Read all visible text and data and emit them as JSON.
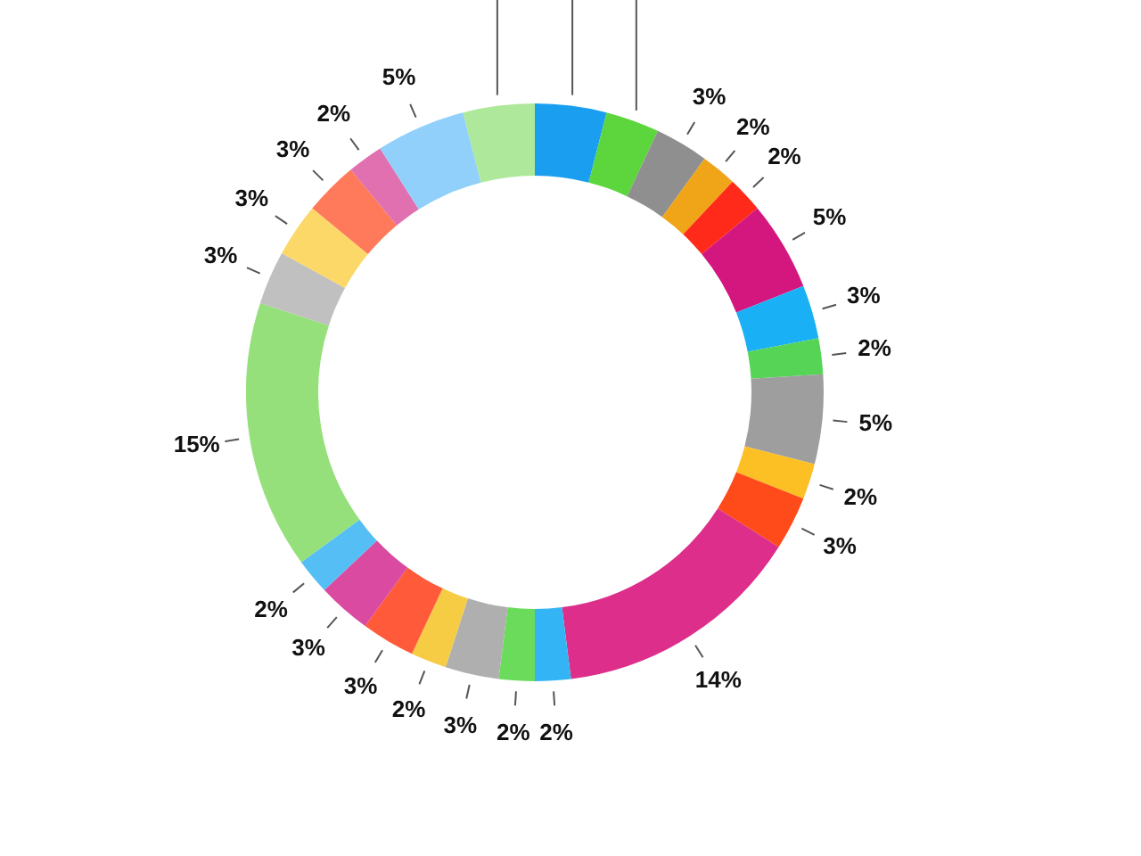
{
  "chart_data": {
    "type": "donut",
    "categories": [
      null,
      null,
      null,
      null,
      null,
      null,
      null,
      null,
      null,
      null,
      null,
      null,
      null,
      null,
      null,
      null,
      null,
      null,
      null,
      null,
      null,
      null,
      null,
      null,
      null,
      null
    ],
    "values": [
      4,
      3,
      3,
      2,
      2,
      5,
      3,
      2,
      5,
      2,
      3,
      14,
      2,
      2,
      3,
      2,
      3,
      3,
      2,
      15,
      3,
      3,
      3,
      2,
      5,
      4
    ],
    "value_labels": [
      null,
      null,
      "3%",
      "2%",
      "2%",
      "5%",
      "3%",
      "2%",
      "5%",
      "2%",
      "3%",
      "14%",
      "2%",
      "2%",
      "3%",
      "2%",
      "3%",
      "3%",
      "2%",
      "15%",
      "3%",
      "3%",
      "3%",
      "2%",
      "5%",
      null
    ],
    "colors": [
      "#1a9ff0",
      "#5cd63c",
      "#8f8f8f",
      "#f0a418",
      "#ff2a1a",
      "#d4177f",
      "#1ab0f5",
      "#55d455",
      "#9e9e9e",
      "#fcbf24",
      "#ff4a1a",
      "#dc2e8a",
      "#33b5f5",
      "#6adb5a",
      "#afafaf",
      "#f7cc45",
      "#ff5a3a",
      "#d94aa0",
      "#55bff5",
      "#95e07a",
      "#c0c0c0",
      "#fcd868",
      "#ff7a5a",
      "#e070b0",
      "#90d0fa",
      "#aee89a"
    ]
  }
}
